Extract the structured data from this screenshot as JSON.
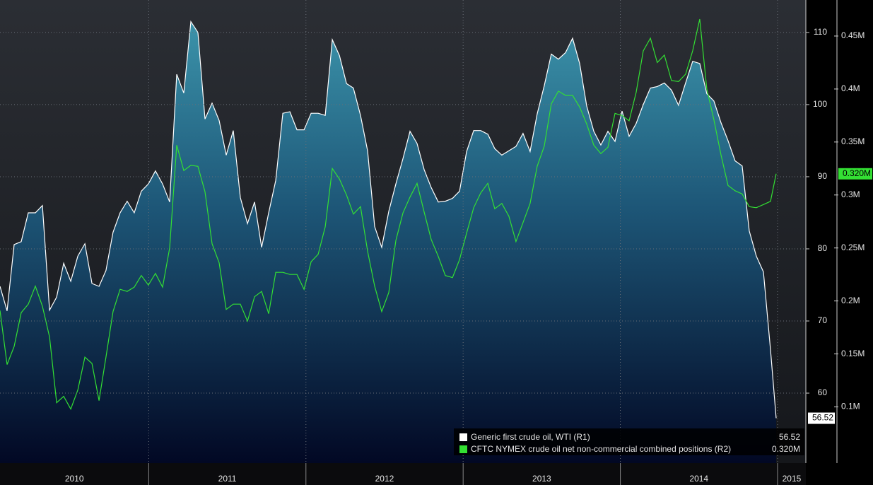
{
  "chart_data": {
    "type": "line",
    "xlim": [
      2010.054,
      2015.18
    ],
    "xticks": [
      2010,
      2011,
      2012,
      2013,
      2014,
      2015
    ],
    "ylim": [
      50.3,
      114.5
    ],
    "yticks": [
      60,
      70,
      80,
      90,
      100,
      110
    ],
    "y2lim": [
      47000,
      484000
    ],
    "y2ticks": [
      {
        "value": 100000,
        "label": "0.1M"
      },
      {
        "value": 150000,
        "label": "0.15M"
      },
      {
        "value": 200000,
        "label": "0.2M"
      },
      {
        "value": 250000,
        "label": "0.25M"
      },
      {
        "value": 300000,
        "label": "0.3M"
      },
      {
        "value": 350000,
        "label": "0.35M"
      },
      {
        "value": 400000,
        "label": "0.4M"
      },
      {
        "value": 450000,
        "label": "0.45M"
      }
    ],
    "grid": true,
    "legend": "bottom-right",
    "x": [
      2010.054,
      2010.099,
      2010.144,
      2010.189,
      2010.234,
      2010.279,
      2010.324,
      2010.369,
      2010.414,
      2010.459,
      2010.504,
      2010.549,
      2010.594,
      2010.639,
      2010.684,
      2010.728,
      2010.773,
      2010.818,
      2010.863,
      2010.908,
      2010.953,
      2010.998,
      2011.043,
      2011.088,
      2011.133,
      2011.178,
      2011.223,
      2011.268,
      2011.313,
      2011.358,
      2011.403,
      2011.448,
      2011.493,
      2011.538,
      2011.583,
      2011.628,
      2011.673,
      2011.718,
      2011.763,
      2011.808,
      2011.853,
      2011.898,
      2011.943,
      2011.988,
      2012.033,
      2012.078,
      2012.123,
      2012.168,
      2012.213,
      2012.258,
      2012.302,
      2012.347,
      2012.392,
      2012.437,
      2012.482,
      2012.527,
      2012.572,
      2012.617,
      2012.662,
      2012.707,
      2012.752,
      2012.797,
      2012.842,
      2012.887,
      2012.932,
      2012.977,
      2013.022,
      2013.067,
      2013.112,
      2013.157,
      2013.201,
      2013.246,
      2013.291,
      2013.336,
      2013.381,
      2013.426,
      2013.471,
      2013.516,
      2013.561,
      2013.606,
      2013.651,
      2013.696,
      2013.741,
      2013.786,
      2013.831,
      2013.876,
      2013.921,
      2013.966,
      2014.011,
      2014.056,
      2014.101,
      2014.146,
      2014.191,
      2014.235,
      2014.28,
      2014.325,
      2014.37,
      2014.415,
      2014.46,
      2014.505,
      2014.55,
      2014.595,
      2014.64,
      2014.685,
      2014.73,
      2014.775,
      2014.82,
      2014.865,
      2014.91,
      2014.955,
      2014.991
    ],
    "series": [
      {
        "name": "Generic first crude oil, WTI (R1)",
        "color": "#ffffff",
        "axis": "y",
        "last_value_label": "56.52",
        "values": [
          74.8,
          71.4,
          80.6,
          81,
          85,
          85,
          86,
          71.5,
          73.3,
          78,
          75.5,
          79,
          80.7,
          75.2,
          74.8,
          77,
          82.3,
          85,
          86.6,
          85,
          88,
          89,
          90.8,
          89,
          86.5,
          104.2,
          101.6,
          111.5,
          110,
          98,
          100.2,
          97.8,
          93,
          96.4,
          87.1,
          83.5,
          86.5,
          80.2,
          85,
          89.5,
          98.8,
          99,
          96.5,
          96.5,
          98.8,
          98.8,
          98.5,
          109,
          106.8,
          102.9,
          102.3,
          98.5,
          93.6,
          83.1,
          80.2,
          85.2,
          89,
          92.5,
          96.3,
          94.6,
          91,
          88.5,
          86.5,
          86.6,
          87,
          88,
          93.5,
          96.4,
          96.4,
          95.9,
          93.9,
          93,
          93.6,
          94.2,
          96,
          93.5,
          98.7,
          102.6,
          107,
          106.3,
          107.2,
          109.2,
          105.7,
          99.8,
          96.3,
          94.4,
          96.3,
          94.9,
          99.1,
          95.6,
          97.4,
          100,
          102.3,
          102.5,
          103,
          102,
          99.9,
          103,
          106,
          105.7,
          101.5,
          100.5,
          97.5,
          95,
          92.2,
          91.5,
          82.5,
          79,
          76.8,
          66,
          56.52
        ]
      },
      {
        "name": "CFTC NYMEX crude oil net non-commercial combined positions (R2)",
        "color": "#33e033",
        "axis": "y2",
        "last_value_label": "0.320M",
        "values": [
          191000,
          140000,
          157000,
          189000,
          197000,
          214000,
          195000,
          166000,
          104000,
          110000,
          98000,
          116000,
          147000,
          141000,
          106000,
          147000,
          190000,
          211000,
          209000,
          213000,
          224000,
          215000,
          226000,
          213000,
          250000,
          347000,
          323000,
          328000,
          327000,
          303000,
          254000,
          236000,
          192000,
          197000,
          197000,
          181000,
          204000,
          209000,
          188000,
          227000,
          227000,
          225000,
          225000,
          211000,
          237000,
          244000,
          270000,
          325000,
          315000,
          300000,
          282000,
          289000,
          247000,
          214000,
          190000,
          208000,
          257000,
          283000,
          298000,
          311000,
          284000,
          258000,
          242000,
          224000,
          222000,
          239000,
          264000,
          288000,
          302000,
          311000,
          287000,
          292000,
          280000,
          256000,
          274000,
          292000,
          327000,
          346000,
          386000,
          398000,
          394000,
          394000,
          383000,
          367000,
          347000,
          339000,
          345000,
          377000,
          375000,
          370000,
          397000,
          436000,
          448000,
          425000,
          432000,
          408000,
          407000,
          414000,
          436000,
          466000,
          400000,
          371000,
          338000,
          309000,
          304000,
          301000,
          289000,
          288000,
          291000,
          294000,
          320000
        ]
      }
    ]
  }
}
